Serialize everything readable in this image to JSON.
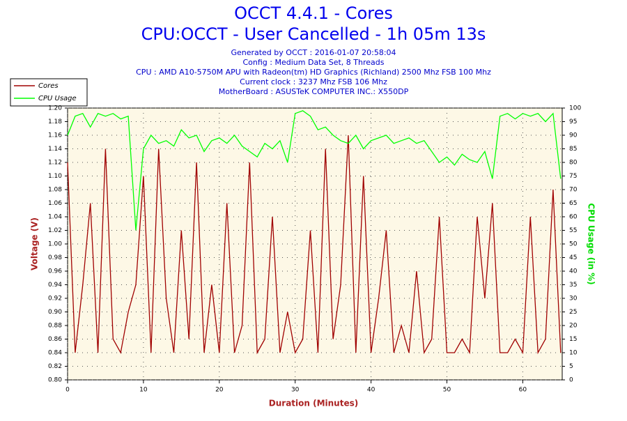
{
  "chart_data": {
    "type": "line",
    "title": "OCCT 4.4.1 - Cores",
    "subtitle": "CPU:OCCT - User Cancelled - 1h 05m 13s",
    "info": [
      "Generated by OCCT : 2016-01-07 20:58:04",
      "Config : Medium Data Set, 8 Threads",
      "CPU : AMD A10-5750M APU with Radeon(tm) HD Graphics (Richland) 2500 Mhz FSB 100 Mhz",
      "Current clock : 3237 Mhz FSB 106 Mhz",
      "MotherBoard : ASUSTeK COMPUTER INC.: X550DP"
    ],
    "xlabel": "Duration (Minutes)",
    "ylabel": "Voltage (V)",
    "y2label": "CPU Usage (in %)",
    "x": [
      0,
      1,
      2,
      3,
      4,
      5,
      6,
      7,
      8,
      9,
      10,
      11,
      12,
      13,
      14,
      15,
      16,
      17,
      18,
      19,
      20,
      21,
      22,
      23,
      24,
      25,
      26,
      27,
      28,
      29,
      30,
      31,
      32,
      33,
      34,
      35,
      36,
      37,
      38,
      39,
      40,
      41,
      42,
      43,
      44,
      45,
      46,
      47,
      48,
      49,
      50,
      51,
      52,
      53,
      54,
      55,
      56,
      57,
      58,
      59,
      60,
      61,
      62,
      63,
      64,
      65
    ],
    "series": [
      {
        "name": "Cores",
        "color": "#a00000",
        "values": [
          1.12,
          0.84,
          0.94,
          1.06,
          0.84,
          1.14,
          0.86,
          0.84,
          0.9,
          0.94,
          1.1,
          0.84,
          1.14,
          0.92,
          0.84,
          1.02,
          0.86,
          1.12,
          0.84,
          0.94,
          0.84,
          1.06,
          0.84,
          0.88,
          1.12,
          0.84,
          0.86,
          1.04,
          0.84,
          0.9,
          0.84,
          0.86,
          1.02,
          0.84,
          1.14,
          0.86,
          0.94,
          1.16,
          0.84,
          1.1,
          0.84,
          0.92,
          1.02,
          0.84,
          0.88,
          0.84,
          0.96,
          0.84,
          0.86,
          1.04,
          0.84,
          0.84,
          0.86,
          0.84,
          1.04,
          0.92,
          1.06,
          0.84,
          0.84,
          0.86,
          0.84,
          1.04,
          0.84,
          0.86,
          1.08,
          0.84
        ]
      },
      {
        "name": "CPU Usage",
        "color": "#00ff00",
        "axis": "y2",
        "values": [
          90,
          97,
          98,
          93,
          98,
          97,
          98,
          96,
          97,
          55,
          85,
          90,
          87,
          88,
          86,
          92,
          89,
          90,
          84,
          88,
          89,
          87,
          90,
          86,
          84,
          82,
          87,
          85,
          88,
          80,
          98,
          99,
          97,
          92,
          93,
          90,
          88,
          87,
          90,
          85,
          88,
          89,
          90,
          87,
          88,
          89,
          87,
          88,
          84,
          80,
          82,
          79,
          83,
          81,
          80,
          84,
          74,
          97,
          98,
          96,
          98,
          97,
          98,
          95,
          98,
          74
        ]
      }
    ],
    "xlim": [
      0,
      65.2
    ],
    "xticks": [
      0,
      10,
      20,
      30,
      40,
      50,
      60
    ],
    "ylim": [
      0.8,
      1.2
    ],
    "yticks": [
      {
        "value": 0.8,
        "label": "0.80"
      },
      0.82,
      0.84,
      0.86,
      0.88,
      {
        "value": 0.9,
        "label": "0.90"
      },
      0.92,
      0.94,
      0.96,
      0.98,
      {
        "value": 1.0,
        "label": "1.00"
      },
      1.02,
      1.04,
      1.06,
      1.08,
      {
        "value": 1.1,
        "label": "1.10"
      },
      1.12,
      1.14,
      1.16,
      1.18,
      {
        "value": 1.2,
        "label": "1.20"
      }
    ],
    "y2lim": [
      0,
      100
    ],
    "y2ticks": [
      0,
      5,
      10,
      15,
      20,
      25,
      30,
      35,
      40,
      45,
      50,
      55,
      60,
      65,
      70,
      75,
      80,
      85,
      90,
      95,
      100
    ],
    "grid": true,
    "legend": "top-left"
  }
}
